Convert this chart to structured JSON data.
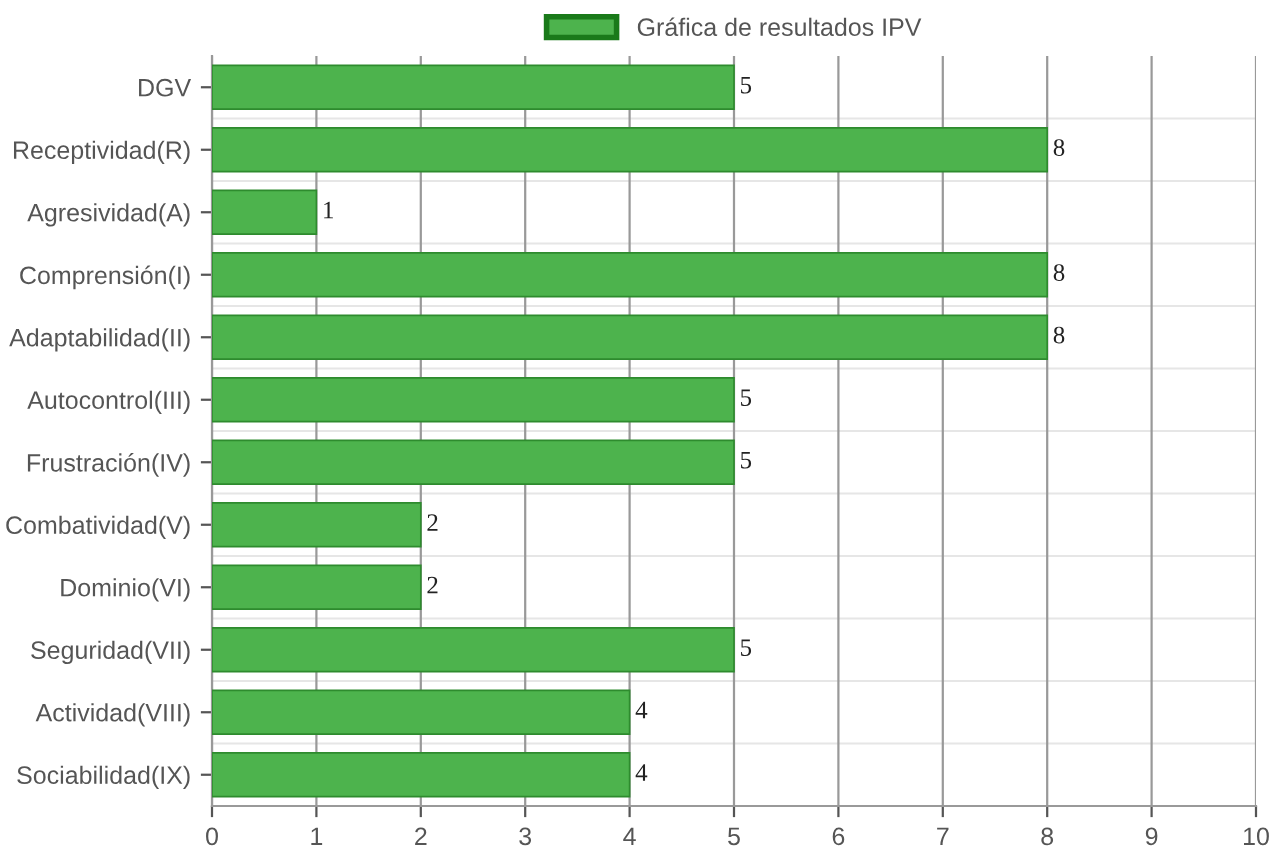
{
  "chart_data": {
    "type": "bar",
    "orientation": "horizontal",
    "categories": [
      "DGV",
      "Receptividad(R)",
      "Agresividad(A)",
      "Comprensión(I)",
      "Adaptabilidad(II)",
      "Autocontrol(III)",
      "Frustración(IV)",
      "Combatividad(V)",
      "Dominio(VI)",
      "Seguridad(VII)",
      "Actividad(VIII)",
      "Sociabilidad(IX)"
    ],
    "series": [
      {
        "name": "Gráfica de resultados IPV",
        "color": "#4db34d",
        "values": [
          5,
          8,
          1,
          8,
          8,
          5,
          5,
          2,
          2,
          5,
          4,
          4
        ]
      }
    ],
    "xlim": [
      0,
      10
    ],
    "xticks": [
      0,
      1,
      2,
      3,
      4,
      5,
      6,
      7,
      8,
      9,
      10
    ],
    "grid": true,
    "legend": "top",
    "data_labels": true
  }
}
